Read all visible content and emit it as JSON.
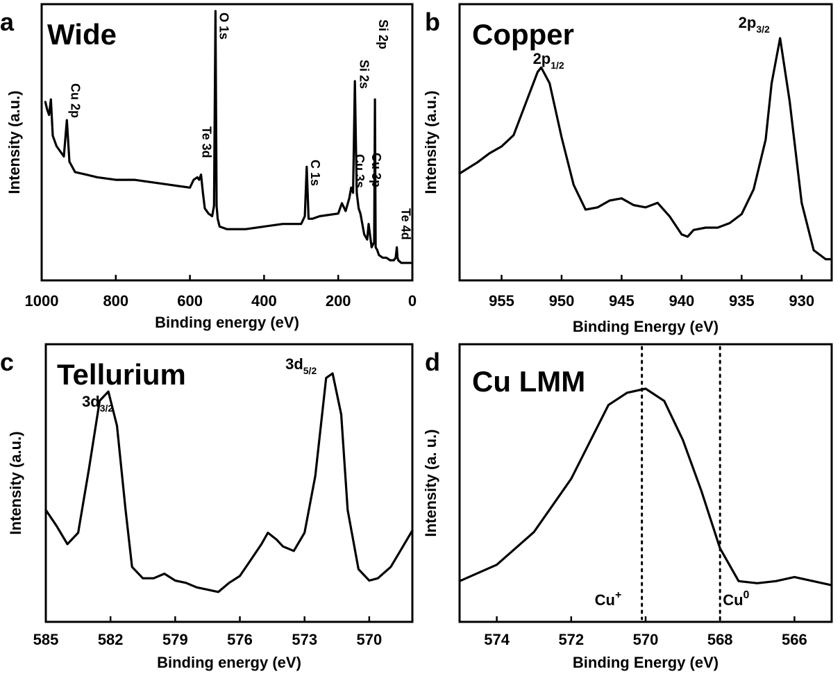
{
  "chart_data": [
    {
      "panel": "a",
      "title": "Wide",
      "type": "line",
      "xlabel": "Binding energy (eV)",
      "ylabel": "Intensity (a.u.)",
      "xlim": [
        1000,
        0
      ],
      "x_ticks": [
        1000,
        800,
        600,
        400,
        200,
        0
      ],
      "y_ticks": "none",
      "grid": false,
      "series": [
        {
          "x": [
            990,
            985,
            980,
            975,
            970,
            960,
            950,
            940,
            932,
            925,
            910,
            880,
            850,
            800,
            750,
            700,
            650,
            600,
            590,
            580,
            575,
            570,
            565,
            560,
            550,
            540,
            535,
            531,
            528,
            525,
            520,
            500,
            450,
            400,
            350,
            300,
            290,
            285,
            280,
            270,
            250,
            200,
            190,
            180,
            170,
            165,
            160,
            155,
            153,
            150,
            145,
            140,
            130,
            122,
            118,
            110,
            103,
            101,
            99,
            95,
            90,
            80,
            70,
            60,
            50,
            45,
            42,
            40,
            38,
            30,
            20,
            10,
            5
          ],
          "y": [
            0.65,
            0.62,
            0.6,
            0.66,
            0.52,
            0.48,
            0.46,
            0.44,
            0.58,
            0.42,
            0.38,
            0.37,
            0.36,
            0.35,
            0.35,
            0.34,
            0.33,
            0.32,
            0.35,
            0.36,
            0.35,
            0.37,
            0.3,
            0.24,
            0.22,
            0.21,
            0.25,
            1.0,
            0.25,
            0.2,
            0.17,
            0.16,
            0.16,
            0.17,
            0.18,
            0.18,
            0.21,
            0.4,
            0.2,
            0.2,
            0.21,
            0.22,
            0.26,
            0.23,
            0.28,
            0.32,
            0.3,
            0.73,
            0.55,
            0.3,
            0.24,
            0.22,
            0.14,
            0.12,
            0.18,
            0.09,
            0.11,
            0.66,
            0.09,
            0.08,
            0.06,
            0.05,
            0.05,
            0.04,
            0.04,
            0.05,
            0.09,
            0.05,
            0.04,
            0.03,
            0.03,
            0.03,
            0.03
          ]
        }
      ],
      "annotations": [
        {
          "text": "Cu 2p",
          "x": 932
        },
        {
          "text": "Te 3d",
          "x": 578
        },
        {
          "text": "O 1s",
          "x": 531
        },
        {
          "text": "C 1s",
          "x": 285
        },
        {
          "text": "Cu 3s",
          "x": 165
        },
        {
          "text": "Si 2s",
          "x": 153
        },
        {
          "text": "Cu 3p",
          "x": 120
        },
        {
          "text": "Si 2p",
          "x": 101
        },
        {
          "text": "Te 4d",
          "x": 40
        }
      ]
    },
    {
      "panel": "b",
      "title": "Copper",
      "type": "line",
      "xlabel": "Binding Energy (eV)",
      "ylabel": "Intensity (a.u.)",
      "xlim": [
        958.5,
        927.5
      ],
      "x_ticks": [
        955,
        950,
        945,
        940,
        935,
        930
      ],
      "y_ticks": "none",
      "grid": false,
      "series": [
        {
          "x": [
            958.5,
            957,
            956,
            955,
            954,
            953,
            952,
            951.7,
            951,
            950,
            949,
            948,
            947,
            946,
            945,
            944,
            943,
            942,
            941,
            940,
            939.5,
            939,
            938,
            937,
            936,
            935,
            934,
            933,
            932.5,
            931.8,
            931,
            930,
            929,
            928,
            927.5
          ],
          "y": [
            0.4,
            0.45,
            0.49,
            0.52,
            0.57,
            0.71,
            0.85,
            0.87,
            0.8,
            0.56,
            0.35,
            0.24,
            0.25,
            0.28,
            0.29,
            0.26,
            0.25,
            0.27,
            0.21,
            0.13,
            0.12,
            0.15,
            0.16,
            0.16,
            0.18,
            0.22,
            0.33,
            0.55,
            0.8,
            1.0,
            0.72,
            0.27,
            0.06,
            0.02,
            0.02
          ]
        }
      ],
      "annotations": [
        {
          "text": "2p",
          "sub": "1/2",
          "x": 951.7
        },
        {
          "text": "2p",
          "sub": "3/2",
          "x": 931.8
        }
      ]
    },
    {
      "panel": "c",
      "title": "Tellurium",
      "type": "line",
      "xlabel": "Binding energy (eV)",
      "ylabel": "Intensity (a.u.)",
      "xlim": [
        585,
        568
      ],
      "x_ticks": [
        585,
        582,
        579,
        576,
        573,
        570
      ],
      "y_ticks": "none",
      "grid": false,
      "series": [
        {
          "x": [
            585,
            584.5,
            584,
            583.5,
            583,
            582.5,
            582.1,
            581.7,
            581.3,
            581,
            580.5,
            580,
            579.5,
            579,
            578.5,
            578,
            577.5,
            577,
            576.5,
            576,
            575.5,
            575,
            574.7,
            574.3,
            574,
            573.5,
            573,
            572.5,
            572,
            571.7,
            571.3,
            571,
            570.5,
            570,
            569.6,
            569,
            568.5,
            568
          ],
          "y": [
            0.4,
            0.33,
            0.25,
            0.3,
            0.58,
            0.88,
            0.92,
            0.77,
            0.4,
            0.15,
            0.1,
            0.1,
            0.12,
            0.09,
            0.08,
            0.06,
            0.05,
            0.04,
            0.08,
            0.11,
            0.18,
            0.25,
            0.3,
            0.27,
            0.24,
            0.22,
            0.3,
            0.55,
            0.98,
            1.0,
            0.82,
            0.4,
            0.14,
            0.09,
            0.1,
            0.15,
            0.23,
            0.31
          ]
        }
      ],
      "annotations": [
        {
          "text": "3d",
          "sub": "3/2",
          "x": 582.1
        },
        {
          "text": "3d",
          "sub": "5/2",
          "x": 571.7
        }
      ]
    },
    {
      "panel": "d",
      "title": "Cu LMM",
      "type": "line",
      "xlabel": "Binding Energy (eV)",
      "ylabel": "Intensity (a. u.)",
      "xlim": [
        575,
        565
      ],
      "x_ticks": [
        574,
        572,
        570,
        568,
        566
      ],
      "y_ticks": "none",
      "grid": false,
      "series": [
        {
          "x": [
            575,
            574,
            573,
            572,
            571.5,
            571,
            570.5,
            570,
            569.5,
            569,
            568.5,
            568,
            567.5,
            567,
            566.5,
            566,
            565.5,
            565
          ],
          "y": [
            0.06,
            0.14,
            0.3,
            0.56,
            0.74,
            0.92,
            0.98,
            1.0,
            0.94,
            0.75,
            0.5,
            0.22,
            0.06,
            0.05,
            0.06,
            0.08,
            0.06,
            0.04
          ]
        }
      ],
      "reference_lines": [
        {
          "x": 570.1,
          "label": "Cu",
          "sup": "+"
        },
        {
          "x": 568,
          "label": "Cu",
          "sup": "0"
        }
      ]
    }
  ]
}
